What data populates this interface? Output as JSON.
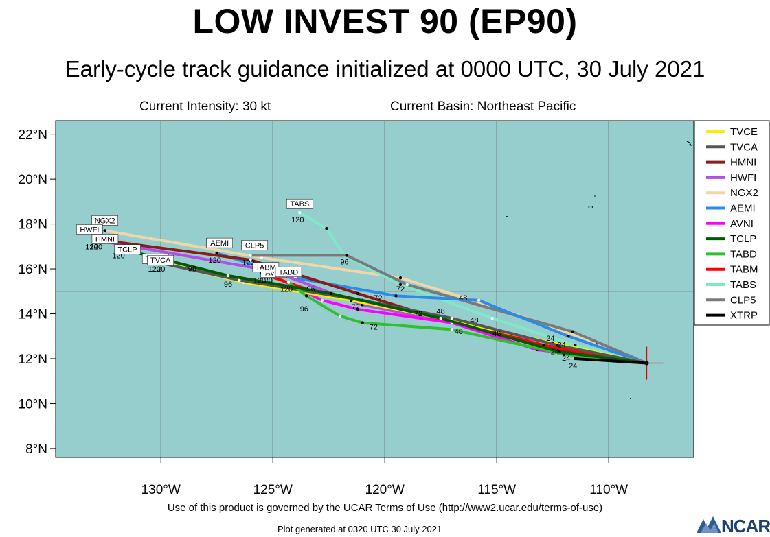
{
  "header": {
    "title": "LOW INVEST 90 (EP90)",
    "subtitle": "Early-cycle track guidance initialized at 0000 UTC, 30 July 2021",
    "intensity": "Current Intensity: 30 kt",
    "basin": "Current Basin: Northeast Pacific"
  },
  "map": {
    "ocean_color": "#96cdcd",
    "lat_range": [
      7.6,
      22.6
    ],
    "lon_range": [
      -134.7,
      -106.2
    ],
    "lat_labels": [
      "8°N",
      "10°N",
      "12°N",
      "14°N",
      "16°N",
      "18°N",
      "20°N",
      "22°N"
    ],
    "lon_labels": [
      "130°W",
      "125°W",
      "120°W",
      "115°W",
      "110°W"
    ],
    "initial_position": {
      "lon": -108.3,
      "lat": 11.8
    }
  },
  "legend": [
    {
      "name": "TVCE",
      "color": "#f5f000"
    },
    {
      "name": "TVCA",
      "color": "#555555"
    },
    {
      "name": "HMNI",
      "color": "#8b1a1a"
    },
    {
      "name": "HWFI",
      "color": "#b14ee8"
    },
    {
      "name": "NGX2",
      "color": "#f0d6a8"
    },
    {
      "name": "AEMI",
      "color": "#2b8be8"
    },
    {
      "name": "AVNI",
      "color": "#ff00ff"
    },
    {
      "name": "TCLP",
      "color": "#005a00"
    },
    {
      "name": "TABD",
      "color": "#2fbf2f"
    },
    {
      "name": "TABM",
      "color": "#ff0000"
    },
    {
      "name": "TABS",
      "color": "#7fe8c8"
    },
    {
      "name": "CLP5",
      "color": "#7a7a7a"
    },
    {
      "name": "XTRP",
      "color": "#000000"
    }
  ],
  "tracks": [
    {
      "name": "NGX2",
      "hour_labels": [
        "120"
      ],
      "points": [
        [
          -108.3,
          11.8
        ],
        [
          -110.5,
          12.7
        ],
        [
          -114.8,
          14.2
        ],
        [
          -119.3,
          15.6
        ],
        [
          -125.5,
          16.5
        ],
        [
          -132.5,
          17.7
        ]
      ]
    },
    {
      "name": "TABS",
      "hour_labels": [
        "120"
      ],
      "points": [
        [
          -108.3,
          11.8
        ],
        [
          -111.5,
          12.6
        ],
        [
          -115.2,
          13.8
        ],
        [
          -119.3,
          15.3
        ],
        [
          -121.8,
          16.6
        ],
        [
          -122.6,
          17.8
        ],
        [
          -123.8,
          18.5
        ]
      ]
    },
    {
      "name": "CLP5",
      "hour_labels": [
        "120"
      ],
      "points": [
        [
          -108.3,
          11.8
        ],
        [
          -111.6,
          13.2
        ],
        [
          -119.0,
          15.3
        ],
        [
          -121.7,
          16.6
        ],
        [
          -126.0,
          16.6
        ]
      ]
    },
    {
      "name": "AEMI",
      "hour_labels": [
        "120"
      ],
      "points": [
        [
          -108.3,
          11.8
        ],
        [
          -111.8,
          13.0
        ],
        [
          -115.8,
          14.6
        ],
        [
          -119.5,
          14.8
        ],
        [
          -124.0,
          15.6
        ],
        [
          -127.5,
          16.7
        ]
      ]
    },
    {
      "name": "HWFI",
      "hour_labels": [
        "120"
      ],
      "points": [
        [
          -108.3,
          11.8
        ],
        [
          -112.6,
          12.7
        ],
        [
          -117.5,
          13.7
        ],
        [
          -121.0,
          14.4
        ],
        [
          -125.0,
          15.9
        ],
        [
          -133.0,
          17.3
        ]
      ]
    },
    {
      "name": "HMNI",
      "hour_labels": [
        "120"
      ],
      "points": [
        [
          -108.3,
          11.8
        ],
        [
          -112.8,
          12.5
        ],
        [
          -117.0,
          13.6
        ],
        [
          -121.2,
          14.9
        ],
        [
          -126.0,
          16.4
        ],
        [
          -132.8,
          17.3
        ]
      ]
    },
    {
      "name": "AVNI",
      "hour_labels": [
        "120"
      ],
      "points": [
        [
          -108.3,
          11.8
        ],
        [
          -113.2,
          12.4
        ],
        [
          -117.0,
          13.6
        ],
        [
          -121.2,
          14.2
        ],
        [
          -122.8,
          14.6
        ],
        [
          -125.2,
          15.8
        ]
      ]
    },
    {
      "name": "TABM",
      "hour_labels": [
        "120"
      ],
      "points": [
        [
          -108.3,
          11.8
        ],
        [
          -112.9,
          12.6
        ],
        [
          -117.5,
          13.8
        ],
        [
          -121.0,
          14.5
        ],
        [
          -123.2,
          15.0
        ],
        [
          -125.5,
          15.8
        ]
      ]
    },
    {
      "name": "TVCE",
      "hour_labels": [
        "120"
      ],
      "points": [
        [
          -108.3,
          11.8
        ],
        [
          -112.5,
          12.7
        ],
        [
          -117.0,
          13.7
        ],
        [
          -121.5,
          14.6
        ],
        [
          -126.3,
          15.4
        ],
        [
          -130.0,
          16.3
        ]
      ]
    },
    {
      "name": "TVCA",
      "hour_labels": [
        "120"
      ],
      "points": [
        [
          -108.3,
          11.8
        ],
        [
          -112.3,
          12.6
        ],
        [
          -117.0,
          13.8
        ],
        [
          -121.0,
          14.6
        ],
        [
          -126.5,
          15.5
        ],
        [
          -130.2,
          16.3
        ]
      ]
    },
    {
      "name": "TABD",
      "hour_labels": [
        "120"
      ],
      "points": [
        [
          -108.3,
          11.8
        ],
        [
          -112.0,
          12.2
        ],
        [
          -117.0,
          13.3
        ],
        [
          -121.0,
          13.6
        ],
        [
          -122.0,
          13.9
        ],
        [
          -123.5,
          14.8
        ],
        [
          -124.3,
          15.4
        ]
      ]
    },
    {
      "name": "TCLP",
      "hour_labels": [
        "120"
      ],
      "points": [
        [
          -108.3,
          11.8
        ],
        [
          -112.2,
          12.3
        ],
        [
          -117.5,
          13.8
        ],
        [
          -122.4,
          14.9
        ],
        [
          -127.0,
          15.7
        ],
        [
          -131.8,
          16.9
        ]
      ]
    },
    {
      "name": "XTRP",
      "hour_labels": [
        "24"
      ],
      "points": [
        [
          -108.3,
          11.8
        ],
        [
          -111.5,
          12.0
        ]
      ]
    }
  ],
  "hour_marks": [
    "24",
    "48",
    "72",
    "96",
    "120"
  ],
  "footer": {
    "terms": "Use of this product is governed by the UCAR Terms of Use (http://www2.ucar.edu/terms-of-use)",
    "generated": "Plot generated at 0320 UTC   30 July 2021",
    "logo": "NCAR"
  }
}
